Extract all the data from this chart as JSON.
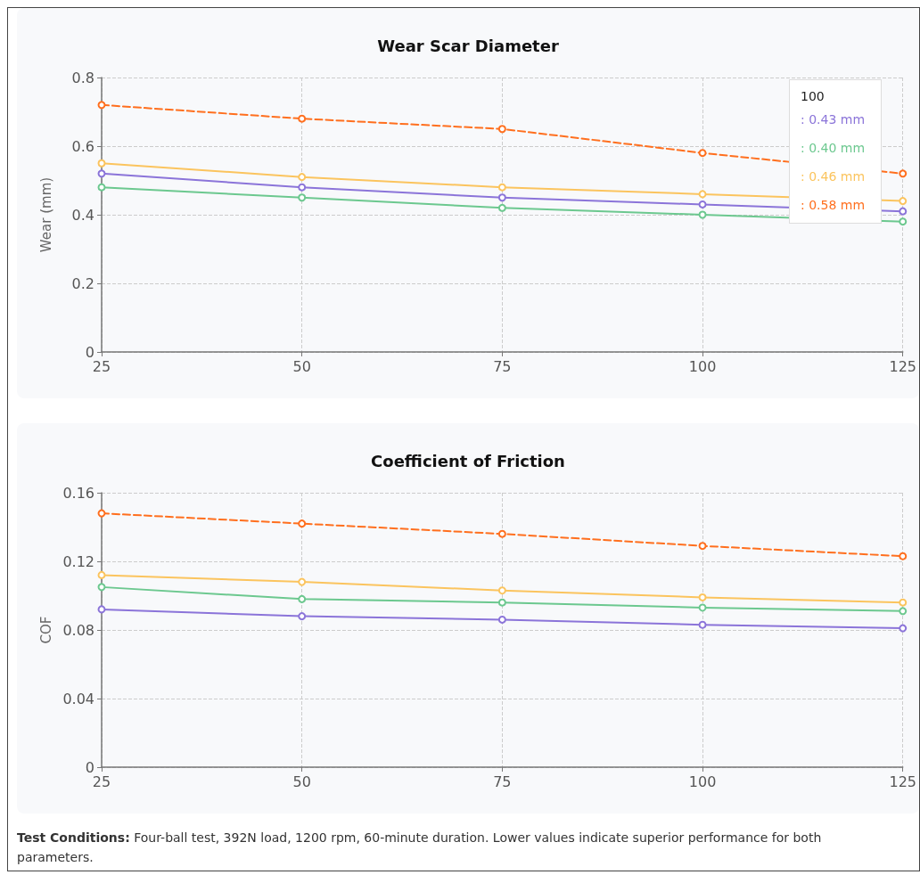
{
  "chart_data": [
    {
      "type": "line",
      "title": "Wear Scar Diameter",
      "ylabel": "Wear (mm)",
      "x": [
        25,
        50,
        75,
        100,
        125
      ],
      "xlim": [
        25,
        125
      ],
      "xticks": [
        25,
        50,
        75,
        100,
        125
      ],
      "ylim": [
        0,
        0.8
      ],
      "yticks": [
        0,
        0.2,
        0.4,
        0.6,
        0.8
      ],
      "grid": true,
      "marker": "circle",
      "series": [
        {
          "color": "#8b74d9",
          "values": [
            0.52,
            0.48,
            0.45,
            0.43,
            0.41
          ]
        },
        {
          "color": "#6cc88f",
          "values": [
            0.48,
            0.45,
            0.42,
            0.4,
            0.38
          ]
        },
        {
          "color": "#fbc45e",
          "values": [
            0.55,
            0.51,
            0.48,
            0.46,
            0.44
          ]
        },
        {
          "color": "#ff6f1e",
          "values": [
            0.72,
            0.68,
            0.65,
            0.58,
            0.52
          ],
          "line_style": "dashed"
        }
      ],
      "annotations": [
        "100",
        ": 0.43 mm",
        ": 0.40 mm",
        ": 0.46 mm",
        ": 0.58 mm"
      ]
    },
    {
      "type": "line",
      "title": "Coefficient of Friction",
      "ylabel": "COF",
      "x": [
        25,
        50,
        75,
        100,
        125
      ],
      "xlim": [
        25,
        125
      ],
      "xticks": [
        25,
        50,
        75,
        100,
        125
      ],
      "ylim": [
        0,
        0.16
      ],
      "yticks": [
        0,
        0.04,
        0.08,
        0.12,
        0.16
      ],
      "grid": true,
      "marker": "circle",
      "series": [
        {
          "color": "#8b74d9",
          "values": [
            0.092,
            0.088,
            0.086,
            0.083,
            0.081
          ]
        },
        {
          "color": "#6cc88f",
          "values": [
            0.105,
            0.098,
            0.096,
            0.093,
            0.091
          ]
        },
        {
          "color": "#fbc45e",
          "values": [
            0.112,
            0.108,
            0.103,
            0.099,
            0.096
          ]
        },
        {
          "color": "#ff6f1e",
          "values": [
            0.148,
            0.142,
            0.136,
            0.129,
            0.123
          ],
          "line_style": "dashed"
        }
      ],
      "annotations": [
        "Test Conditions: Four-ball test, 392N load, 1200 rpm, 60-minute duration. Lower values indicate superior performance for both parameters."
      ]
    }
  ]
}
